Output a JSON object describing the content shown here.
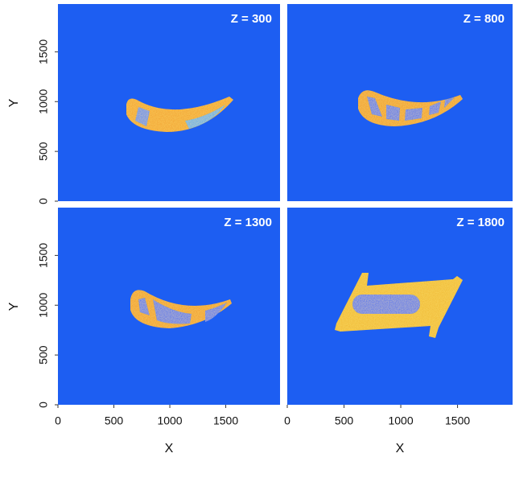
{
  "panels": [
    {
      "title": "Z = 300"
    },
    {
      "title": "Z = 800"
    },
    {
      "title": "Z = 1300"
    },
    {
      "title": "Z = 1800"
    }
  ],
  "x_axis": {
    "label": "X",
    "lim": [
      0,
      1985
    ],
    "ticks": [
      0,
      500,
      1000,
      1500
    ]
  },
  "y_axis": {
    "label": "Y",
    "lim": [
      0,
      1980
    ],
    "ticks": [
      0,
      500,
      1000,
      1500
    ]
  }
}
